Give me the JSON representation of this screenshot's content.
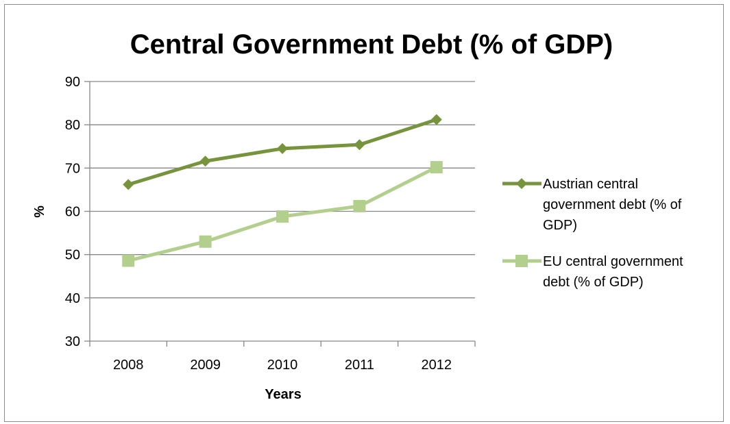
{
  "chart_data": {
    "type": "line",
    "title": "Central Government Debt (% of GDP)",
    "xlabel": "Years",
    "ylabel": "%",
    "categories": [
      "2008",
      "2009",
      "2010",
      "2011",
      "2012"
    ],
    "ylim": [
      30,
      90
    ],
    "yticks": [
      "30",
      "40",
      "50",
      "60",
      "70",
      "80",
      "90"
    ],
    "grid": true,
    "legend_position": "right",
    "series": [
      {
        "name": "Austrian central government debt  (% of GDP)",
        "legend_lines": [
          "Austrian central",
          "government debt  (% of",
          "GDP)"
        ],
        "values": [
          66.2,
          71.6,
          74.5,
          75.4,
          81.2
        ],
        "color": "#77933c",
        "marker": "diamond"
      },
      {
        "name": "EU central government debt  (% of GDP)",
        "legend_lines": [
          "EU central government",
          "debt  (% of GDP)"
        ],
        "values": [
          48.6,
          53.0,
          58.8,
          61.2,
          70.2
        ],
        "color": "#b3cf8d",
        "marker": "square"
      }
    ]
  }
}
